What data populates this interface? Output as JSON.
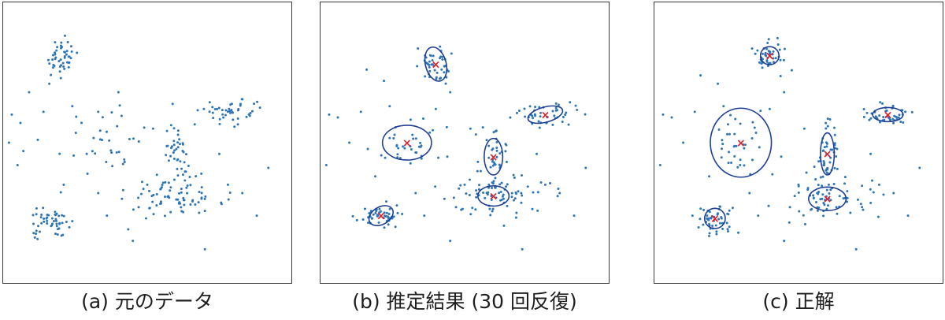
{
  "colors": {
    "points": "#2e75b6",
    "ellipse": "#1f3f94",
    "center": "#e0202a",
    "frame": "#3a3a3a"
  },
  "captions": {
    "a": "(a) 元のデータ",
    "b": "(b) 推定結果 (30 回反復)",
    "c": "(c) 正解"
  },
  "center_marker": "×",
  "chart_data": [
    {
      "type": "scatter",
      "title": "(a) 元のデータ",
      "xlim": [
        0,
        100
      ],
      "ylim": [
        0,
        100
      ],
      "clusters": [
        {
          "cx": 20,
          "cy": 80,
          "sx": 3.0,
          "sy": 3.3,
          "n": 45
        },
        {
          "cx": 37,
          "cy": 53,
          "sx": 8.5,
          "sy": 7.5,
          "n": 35
        },
        {
          "cx": 80,
          "cy": 61,
          "sx": 5.2,
          "sy": 2.2,
          "n": 45
        },
        {
          "cx": 60,
          "cy": 46,
          "sx": 2.2,
          "sy": 6.5,
          "n": 45
        },
        {
          "cx": 60,
          "cy": 30,
          "sx": 8.5,
          "sy": 3.8,
          "n": 70
        },
        {
          "cx": 16,
          "cy": 21,
          "sx": 3.2,
          "sy": 2.6,
          "n": 50
        }
      ],
      "outliers": [
        [
          16,
          71
        ],
        [
          20,
          73
        ],
        [
          9,
          68
        ],
        [
          6,
          57
        ],
        [
          7,
          47
        ],
        [
          5,
          42
        ],
        [
          12,
          51
        ],
        [
          14,
          61
        ],
        [
          24,
          63
        ],
        [
          21,
          35
        ],
        [
          33,
          32
        ],
        [
          36,
          24
        ],
        [
          47,
          27
        ],
        [
          50,
          35
        ],
        [
          52,
          55
        ],
        [
          75,
          46
        ],
        [
          78,
          35
        ],
        [
          83,
          32
        ],
        [
          92,
          41
        ],
        [
          88,
          24
        ],
        [
          40,
          68
        ],
        [
          33,
          61
        ],
        [
          29,
          46
        ],
        [
          68,
          25
        ],
        [
          45,
          15
        ],
        [
          70,
          12
        ],
        [
          24,
          22
        ],
        [
          2,
          50
        ],
        [
          3,
          60
        ],
        [
          42,
          44
        ]
      ],
      "ellipses": [],
      "centers": []
    },
    {
      "type": "scatter",
      "title": "(b) 推定結果 (30 回反復)",
      "xlim": [
        0,
        100
      ],
      "ylim": [
        0,
        100
      ],
      "clusters": [
        {
          "cx": 40,
          "cy": 78,
          "sx": 3.0,
          "sy": 3.3,
          "n": 45
        },
        {
          "cx": 30,
          "cy": 50,
          "sx": 6.5,
          "sy": 4.8,
          "n": 35
        },
        {
          "cx": 78,
          "cy": 60,
          "sx": 5.2,
          "sy": 2.2,
          "n": 45
        },
        {
          "cx": 60,
          "cy": 45,
          "sx": 2.3,
          "sy": 6.5,
          "n": 45
        },
        {
          "cx": 60,
          "cy": 31,
          "sx": 8.5,
          "sy": 3.8,
          "n": 70
        },
        {
          "cx": 21,
          "cy": 24,
          "sx": 3.2,
          "sy": 2.6,
          "n": 50
        }
      ],
      "outliers": [
        [
          16,
          76
        ],
        [
          22,
          72
        ],
        [
          6,
          59
        ],
        [
          10,
          50
        ],
        [
          3,
          60
        ],
        [
          14,
          61
        ],
        [
          24,
          63
        ],
        [
          19,
          38
        ],
        [
          33,
          32
        ],
        [
          36,
          24
        ],
        [
          47,
          27
        ],
        [
          50,
          35
        ],
        [
          52,
          55
        ],
        [
          75,
          46
        ],
        [
          78,
          35
        ],
        [
          83,
          32
        ],
        [
          92,
          41
        ],
        [
          88,
          24
        ],
        [
          45,
          68
        ],
        [
          40,
          62
        ],
        [
          44,
          45
        ],
        [
          68,
          25
        ],
        [
          45,
          15
        ],
        [
          70,
          12
        ],
        [
          26,
          20
        ],
        [
          2,
          42
        ],
        [
          43,
          30
        ]
      ],
      "ellipses": [
        {
          "cx": 40,
          "cy": 78,
          "rx": 3.6,
          "ry": 6.2,
          "angle": -15
        },
        {
          "cx": 30,
          "cy": 50,
          "rx": 8.5,
          "ry": 6.2,
          "angle": 0
        },
        {
          "cx": 78,
          "cy": 60,
          "rx": 6.2,
          "ry": 2.7,
          "angle": -15
        },
        {
          "cx": 60,
          "cy": 45,
          "rx": 3.2,
          "ry": 6.5,
          "angle": 0
        },
        {
          "cx": 60,
          "cy": 31,
          "rx": 5.4,
          "ry": 3.6,
          "angle": 0
        },
        {
          "cx": 21,
          "cy": 24,
          "rx": 4.5,
          "ry": 3.1,
          "angle": -30
        }
      ],
      "centers": [
        [
          40,
          78
        ],
        [
          30,
          50
        ],
        [
          78,
          60
        ],
        [
          60,
          45
        ],
        [
          60,
          31
        ],
        [
          21,
          24
        ]
      ]
    },
    {
      "type": "scatter",
      "title": "(c) 正解",
      "xlim": [
        0,
        100
      ],
      "ylim": [
        0,
        100
      ],
      "clusters": [
        {
          "cx": 40,
          "cy": 81,
          "sx": 2.6,
          "sy": 2.6,
          "n": 45
        },
        {
          "cx": 30,
          "cy": 50,
          "sx": 6.5,
          "sy": 6.5,
          "n": 35
        },
        {
          "cx": 81,
          "cy": 60,
          "sx": 4.5,
          "sy": 1.9,
          "n": 45
        },
        {
          "cx": 60,
          "cy": 46,
          "sx": 1.8,
          "sy": 6.0,
          "n": 45
        },
        {
          "cx": 60,
          "cy": 30,
          "sx": 7.5,
          "sy": 3.8,
          "n": 70
        },
        {
          "cx": 21,
          "cy": 23,
          "sx": 3.0,
          "sy": 3.0,
          "n": 50
        }
      ],
      "outliers": [
        [
          16,
          74
        ],
        [
          22,
          71
        ],
        [
          6,
          59
        ],
        [
          10,
          50
        ],
        [
          3,
          60
        ],
        [
          14,
          61
        ],
        [
          24,
          63
        ],
        [
          19,
          38
        ],
        [
          33,
          32
        ],
        [
          36,
          24
        ],
        [
          47,
          27
        ],
        [
          50,
          35
        ],
        [
          52,
          55
        ],
        [
          75,
          46
        ],
        [
          78,
          35
        ],
        [
          83,
          32
        ],
        [
          92,
          41
        ],
        [
          88,
          24
        ],
        [
          45,
          68
        ],
        [
          40,
          62
        ],
        [
          44,
          45
        ],
        [
          68,
          25
        ],
        [
          45,
          15
        ],
        [
          70,
          12
        ],
        [
          26,
          20
        ],
        [
          2,
          42
        ]
      ],
      "ellipses": [
        {
          "cx": 40,
          "cy": 81,
          "rx": 3.2,
          "ry": 3.2,
          "angle": 0
        },
        {
          "cx": 30,
          "cy": 50,
          "rx": 10.6,
          "ry": 12.3,
          "angle": 0
        },
        {
          "cx": 81,
          "cy": 60,
          "rx": 5.3,
          "ry": 2.5,
          "angle": 0
        },
        {
          "cx": 60,
          "cy": 46,
          "rx": 2.4,
          "ry": 7.5,
          "angle": 0
        },
        {
          "cx": 60,
          "cy": 30,
          "rx": 6.5,
          "ry": 4.2,
          "angle": 0
        },
        {
          "cx": 21,
          "cy": 23,
          "rx": 3.6,
          "ry": 3.6,
          "angle": 0
        }
      ],
      "centers": [
        [
          40,
          81
        ],
        [
          30,
          50
        ],
        [
          81,
          60
        ],
        [
          60,
          46
        ],
        [
          60,
          30
        ],
        [
          21,
          23
        ]
      ]
    }
  ]
}
